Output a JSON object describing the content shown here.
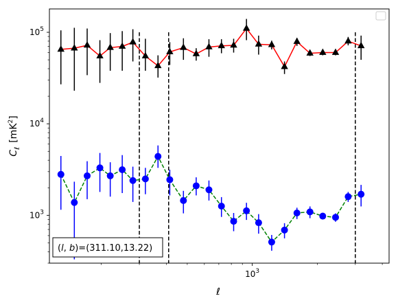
{
  "chart_data": {
    "type": "scatter",
    "title": "",
    "xlabel": "ℓ",
    "ylabel_main": "C",
    "ylabel_sub": "ℓ",
    "ylabel_unit_pre": "[mK",
    "ylabel_unit_sup": "2",
    "ylabel_unit_post": "]",
    "xscale": "log",
    "yscale": "log",
    "xlim": [
      115,
      4300
    ],
    "ylim": [
      300,
      180000
    ],
    "x_major_ticks": [
      {
        "value": 1000,
        "base": "10",
        "exp": "3"
      }
    ],
    "y_major_ticks": [
      {
        "value": 1000,
        "base": "10",
        "exp": "3"
      },
      {
        "value": 10000,
        "base": "10",
        "exp": "4"
      },
      {
        "value": 100000,
        "base": "10",
        "exp": "5"
      }
    ],
    "vlines": [
      300,
      410,
      3000
    ],
    "vline_style": "dashed",
    "legend": "upper right (empty)",
    "annotation": "(l, b)=(311.10,13.22)",
    "annotation_parts": [
      "(",
      "l",
      ", ",
      "b",
      ")=(311.10,13.22)"
    ],
    "colors": {
      "triangle_line": "#ff0000",
      "triangle_marker": "#000000",
      "triangle_err": "#000000",
      "circle_line": "#008000",
      "circle_marker": "#0000ff",
      "circle_err": "#0000ff",
      "vline": "#000000"
    },
    "series": [
      {
        "marker": "triangle",
        "line_style": "solid",
        "x": [
          130,
          150,
          172,
          197,
          220,
          250,
          280,
          320,
          366,
          415,
          480,
          550,
          630,
          720,
          820,
          940,
          1070,
          1230,
          1410,
          1610,
          1850,
          2120,
          2430,
          2780,
          3190,
          3650,
          4180
        ],
        "y": [
          65000,
          67000,
          72000,
          55000,
          68000,
          70000,
          78000,
          55000,
          43000,
          61000,
          68000,
          58000,
          69000,
          71000,
          72000,
          110000,
          74000,
          73000,
          42000,
          79000,
          59000,
          60000,
          60000,
          80000,
          71000,
          0,
          0
        ],
        "yerr_low": [
          38000,
          44000,
          38000,
          27000,
          30000,
          32000,
          30000,
          17000,
          11000,
          17000,
          18000,
          9000,
          15000,
          12000,
          12000,
          28000,
          17000,
          8000,
          7000,
          8000,
          4000,
          4000,
          4000,
          8000,
          21000,
          0,
          0
        ],
        "yerr_high": [
          40000,
          45000,
          38000,
          27000,
          30000,
          33000,
          30000,
          30000,
          13000,
          17000,
          18000,
          9000,
          15000,
          13000,
          13000,
          30000,
          18000,
          8000,
          6000,
          8000,
          4000,
          4000,
          4000,
          9000,
          21000,
          0,
          0
        ]
      },
      {
        "marker": "circle",
        "line_style": "dashed",
        "x": [
          130,
          150,
          172,
          197,
          220,
          250,
          280,
          320,
          366,
          415,
          480,
          550,
          630,
          720,
          820,
          940,
          1070,
          1230,
          1410,
          1610,
          1850,
          2120,
          2430,
          2780,
          3190,
          3650,
          4180
        ],
        "y": [
          2800,
          1380,
          2700,
          3300,
          2700,
          3150,
          2400,
          2500,
          4400,
          2450,
          1450,
          2100,
          1900,
          1260,
          860,
          1120,
          830,
          510,
          690,
          1060,
          1090,
          980,
          950,
          1600,
          1700,
          0,
          0
        ],
        "yerr_low": [
          1650,
          1050,
          1200,
          1500,
          1100,
          1400,
          1000,
          800,
          1100,
          800,
          400,
          450,
          450,
          300,
          190,
          230,
          200,
          100,
          130,
          150,
          160,
          80,
          100,
          200,
          450,
          0,
          0
        ],
        "yerr_high": [
          1650,
          950,
          1200,
          1500,
          1100,
          1400,
          1000,
          800,
          1400,
          700,
          400,
          500,
          500,
          320,
          200,
          250,
          200,
          100,
          130,
          150,
          160,
          80,
          100,
          200,
          450,
          0,
          0
        ]
      }
    ]
  }
}
